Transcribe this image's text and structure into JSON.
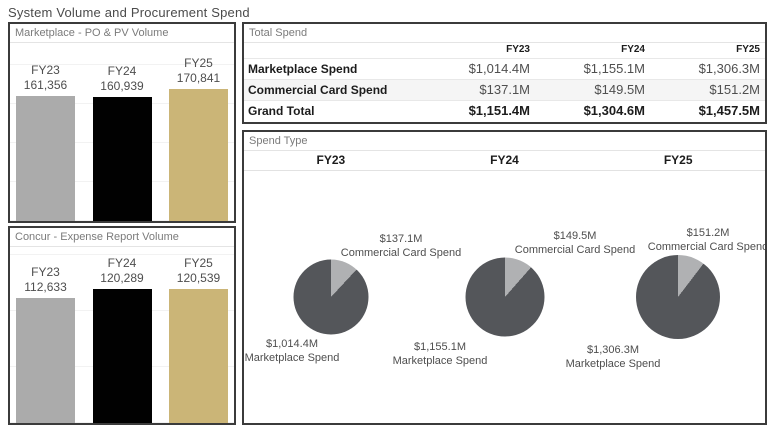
{
  "title": "System Volume and Procurement Spend",
  "colors": {
    "bar_fy23": "#ababab",
    "bar_fy24": "#010101",
    "bar_fy25": "#cbb577",
    "pie_marketplace": "#54565a",
    "pie_commercial": "#b0b1b3",
    "panel_border": "#3b3b3b",
    "table_stripe": "#f5f5f5"
  },
  "chart_data": [
    {
      "type": "bar",
      "title": "Marketplace - PO & PV Volume",
      "categories": [
        "FY23",
        "FY24",
        "FY25"
      ],
      "values": [
        161356,
        160939,
        170841
      ],
      "value_labels": [
        "161,356",
        "160,939",
        "170,841"
      ],
      "ylabel": "",
      "xlabel": "",
      "ylim": [
        0,
        175000
      ],
      "grid": true,
      "legend": "none"
    },
    {
      "type": "bar",
      "title": "Concur - Expense Report Volume",
      "categories": [
        "FY23",
        "FY24",
        "FY25"
      ],
      "values": [
        112633,
        120289,
        120539
      ],
      "value_labels": [
        "112,633",
        "120,289",
        "120,539"
      ],
      "ylabel": "",
      "xlabel": "",
      "ylim": [
        0,
        125000
      ],
      "grid": true,
      "legend": "none"
    },
    {
      "type": "table",
      "title": "Total Spend",
      "columns": [
        "",
        "FY23",
        "FY24",
        "FY25"
      ],
      "rows": [
        {
          "label": "Marketplace Spend",
          "values": [
            "$1,014.4M",
            "$1,155.1M",
            "$1,306.3M"
          ],
          "bold": false
        },
        {
          "label": "Commercial Card Spend",
          "values": [
            "$137.1M",
            "$149.5M",
            "$151.2M"
          ],
          "bold": false
        },
        {
          "label": "Grand Total",
          "values": [
            "$1,151.4M",
            "$1,304.6M",
            "$1,457.5M"
          ],
          "bold": true
        }
      ]
    },
    {
      "type": "pie",
      "title": "Spend Type",
      "groups": [
        {
          "label": "FY23",
          "total": 1151.4,
          "slices": [
            {
              "name": "Commercial Card Spend",
              "value": 137.1,
              "label": "$137.1M"
            },
            {
              "name": "Marketplace Spend",
              "value": 1014.4,
              "label": "$1,014.4M"
            }
          ]
        },
        {
          "label": "FY24",
          "total": 1304.6,
          "slices": [
            {
              "name": "Commercial Card Spend",
              "value": 149.5,
              "label": "$149.5M"
            },
            {
              "name": "Marketplace Spend",
              "value": 1155.1,
              "label": "$1,155.1M"
            }
          ]
        },
        {
          "label": "FY25",
          "total": 1457.5,
          "slices": [
            {
              "name": "Commercial Card Spend",
              "value": 151.2,
              "label": "$151.2M"
            },
            {
              "name": "Marketplace Spend",
              "value": 1306.3,
              "label": "$1,306.3M"
            }
          ]
        }
      ]
    }
  ]
}
